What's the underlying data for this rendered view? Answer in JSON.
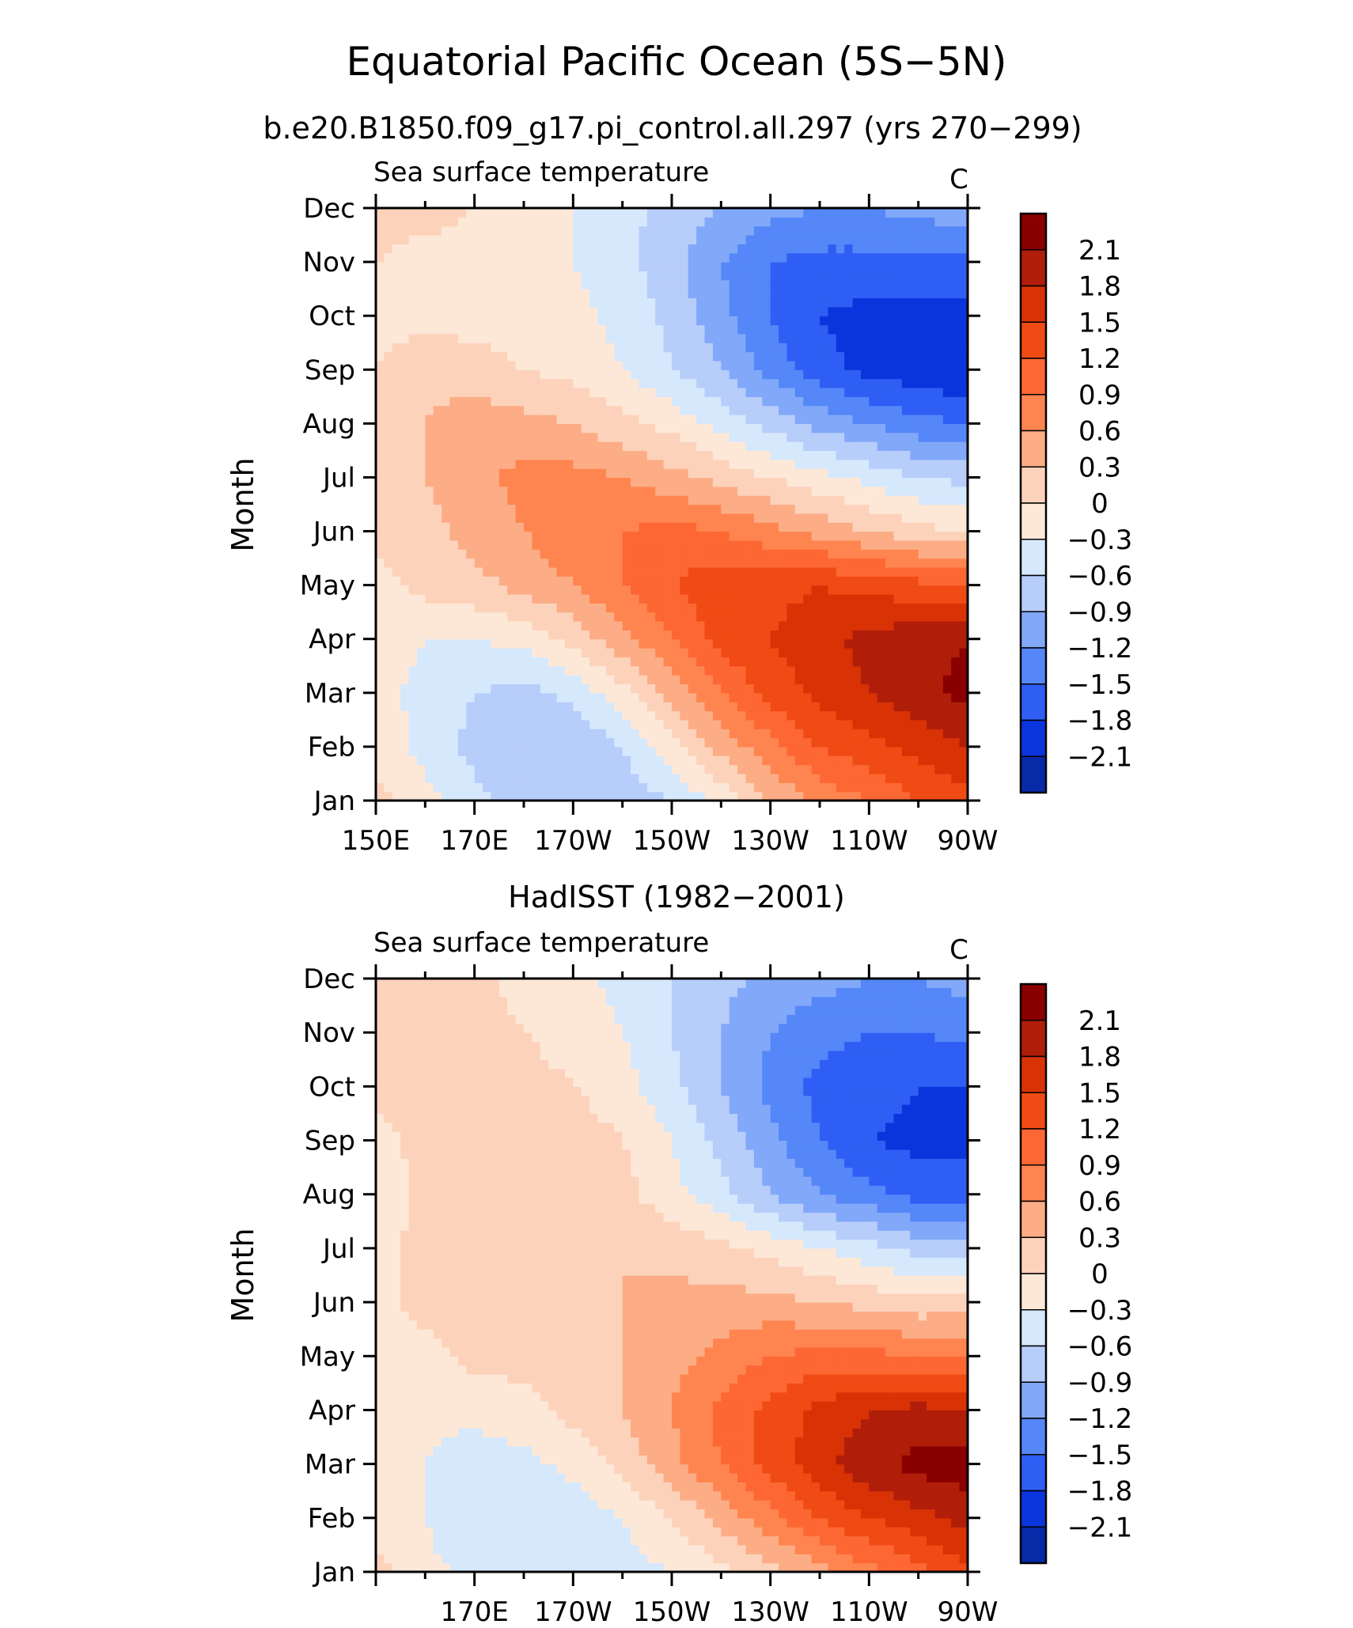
{
  "title": "Equatorial Pacific Ocean (5S−5N)",
  "colorbar": {
    "levels": [
      "2.1",
      "1.8",
      "1.5",
      "1.2",
      "0.9",
      "0.6",
      "0.3",
      "0",
      "−0.3",
      "−0.6",
      "−0.9",
      "−1.2",
      "−1.5",
      "−1.8",
      "−2.1"
    ],
    "colors": [
      "#8a0000",
      "#b01e0a",
      "#d83205",
      "#f04b14",
      "#fd6733",
      "#ff8550",
      "#fcad86",
      "#fdd2bb",
      "#fde8d8",
      "#d6e8fc",
      "#b7cdfa",
      "#82a8f9",
      "#5587f8",
      "#2f5ef5",
      "#0b35dc",
      "#062aa8"
    ]
  },
  "panels": [
    {
      "subtitle": "b.e20.B1850.f09_g17.pi_control.all.297 (yrs 270−299)",
      "left_label": "Sea surface temperature",
      "right_label": "C",
      "ylabel": "Month",
      "months": [
        "Jan",
        "Feb",
        "Mar",
        "Apr",
        "May",
        "Jun",
        "Jul",
        "Aug",
        "Sep",
        "Oct",
        "Nov",
        "Dec"
      ],
      "xticks": [
        "150E",
        "170E",
        "170W",
        "150W",
        "130W",
        "110W",
        "90W"
      ]
    },
    {
      "subtitle": "HadISST (1982−2001)",
      "left_label": "Sea surface temperature",
      "right_label": "C",
      "ylabel": "Month",
      "months": [
        "Jan",
        "Feb",
        "Mar",
        "Apr",
        "May",
        "Jun",
        "Jul",
        "Aug",
        "Sep",
        "Oct",
        "Nov",
        "Dec"
      ],
      "xticks": [
        "",
        "170E",
        "170W",
        "150W",
        "130W",
        "110W",
        "90W"
      ]
    }
  ],
  "chart_data": [
    {
      "type": "heatmap",
      "title": "b.e20.B1850.f09_g17.pi_control.all.297 (yrs 270−299)",
      "ylabel": "Month",
      "units": "C",
      "x": [
        150,
        160,
        170,
        180,
        190,
        200,
        210,
        220,
        230,
        240,
        250,
        260,
        270
      ],
      "y": [
        "Jan",
        "Feb",
        "Mar",
        "Apr",
        "May",
        "Jun",
        "Jul",
        "Aug",
        "Sep",
        "Oct",
        "Nov",
        "Dec"
      ],
      "z": [
        [
          0.1,
          -0.2,
          -0.5,
          -0.8,
          -0.9,
          -0.8,
          -0.6,
          -0.2,
          0.3,
          0.7,
          0.9,
          1.2,
          1.4
        ],
        [
          -0.1,
          -0.4,
          -0.7,
          -0.9,
          -0.9,
          -0.6,
          -0.1,
          0.4,
          0.8,
          1.2,
          1.4,
          1.6,
          1.8
        ],
        [
          -0.2,
          -0.4,
          -0.6,
          -0.7,
          -0.5,
          -0.1,
          0.4,
          0.9,
          1.3,
          1.6,
          1.8,
          2.0,
          2.2
        ],
        [
          -0.1,
          -0.3,
          -0.3,
          -0.2,
          0.1,
          0.5,
          0.9,
          1.3,
          1.5,
          1.7,
          1.9,
          2.0,
          2.1
        ],
        [
          -0.1,
          0.1,
          0.2,
          0.4,
          0.6,
          0.9,
          1.2,
          1.4,
          1.4,
          1.5,
          1.4,
          1.3,
          1.3
        ],
        [
          0.1,
          0.2,
          0.4,
          0.6,
          0.8,
          0.9,
          1.0,
          0.9,
          0.7,
          0.5,
          0.3,
          0.1,
          0.0
        ],
        [
          0.1,
          0.3,
          0.5,
          0.7,
          0.7,
          0.6,
          0.4,
          0.2,
          0.0,
          -0.2,
          -0.4,
          -0.6,
          -0.7
        ],
        [
          0.1,
          0.3,
          0.5,
          0.4,
          0.3,
          0.1,
          -0.1,
          -0.4,
          -0.7,
          -1.0,
          -1.2,
          -1.4,
          -1.5
        ],
        [
          0.0,
          0.2,
          0.1,
          0.0,
          -0.1,
          -0.3,
          -0.6,
          -0.9,
          -1.3,
          -1.7,
          -1.9,
          -2.0,
          -2.1
        ],
        [
          -0.1,
          -0.1,
          -0.1,
          -0.1,
          -0.2,
          -0.4,
          -0.7,
          -1.1,
          -1.5,
          -1.8,
          -1.9,
          -1.9,
          -1.9
        ],
        [
          0.0,
          -0.1,
          -0.1,
          -0.2,
          -0.3,
          -0.5,
          -0.8,
          -1.2,
          -1.5,
          -1.6,
          -1.6,
          -1.6,
          -1.6
        ],
        [
          0.1,
          0.1,
          0.0,
          -0.1,
          -0.3,
          -0.5,
          -0.7,
          -0.9,
          -1.1,
          -1.2,
          -1.2,
          -1.1,
          -1.0
        ]
      ]
    },
    {
      "type": "heatmap",
      "title": "HadISST (1982−2001)",
      "ylabel": "Month",
      "units": "C",
      "x": [
        150,
        160,
        170,
        180,
        190,
        200,
        210,
        220,
        230,
        240,
        250,
        260,
        270
      ],
      "y": [
        "Jan",
        "Feb",
        "Mar",
        "Apr",
        "May",
        "Jun",
        "Jul",
        "Aug",
        "Sep",
        "Oct",
        "Nov",
        "Dec"
      ],
      "z": [
        [
          0.1,
          -0.2,
          -0.4,
          -0.5,
          -0.5,
          -0.4,
          -0.3,
          -0.1,
          0.2,
          0.5,
          0.8,
          1.1,
          1.4
        ],
        [
          -0.1,
          -0.3,
          -0.6,
          -0.6,
          -0.5,
          -0.3,
          0.0,
          0.4,
          0.8,
          1.2,
          1.5,
          1.7,
          1.9
        ],
        [
          -0.1,
          -0.3,
          -0.5,
          -0.4,
          -0.2,
          0.1,
          0.5,
          0.9,
          1.3,
          1.7,
          2.0,
          2.2,
          2.3
        ],
        [
          -0.1,
          -0.2,
          -0.2,
          -0.1,
          0.1,
          0.3,
          0.6,
          1.0,
          1.3,
          1.6,
          1.8,
          1.9,
          1.8
        ],
        [
          -0.1,
          -0.1,
          0.1,
          0.1,
          0.2,
          0.3,
          0.5,
          0.7,
          0.9,
          1.0,
          1.0,
          0.9,
          0.9
        ],
        [
          -0.1,
          0.1,
          0.1,
          0.1,
          0.2,
          0.3,
          0.4,
          0.4,
          0.4,
          0.3,
          0.2,
          0.1,
          0.1
        ],
        [
          -0.1,
          0.1,
          0.1,
          0.2,
          0.2,
          0.3,
          0.2,
          0.1,
          -0.1,
          -0.3,
          -0.5,
          -0.7,
          -0.8
        ],
        [
          -0.2,
          0.1,
          0.2,
          0.2,
          0.2,
          0.1,
          -0.2,
          -0.5,
          -0.9,
          -1.2,
          -1.4,
          -1.6,
          -1.6
        ],
        [
          -0.1,
          0.1,
          0.2,
          0.3,
          0.2,
          0.0,
          -0.3,
          -0.7,
          -1.1,
          -1.5,
          -1.8,
          -1.9,
          -1.9
        ],
        [
          0.1,
          0.1,
          0.1,
          0.1,
          0.0,
          -0.2,
          -0.5,
          -0.9,
          -1.3,
          -1.6,
          -1.7,
          -1.8,
          -1.8
        ],
        [
          0.1,
          0.1,
          0.1,
          0.0,
          -0.1,
          -0.3,
          -0.6,
          -0.9,
          -1.2,
          -1.4,
          -1.5,
          -1.5,
          -1.4
        ],
        [
          0.1,
          0.1,
          0.1,
          -0.1,
          -0.2,
          -0.4,
          -0.6,
          -0.8,
          -1.0,
          -1.1,
          -1.2,
          -1.2,
          -1.1
        ]
      ]
    }
  ]
}
